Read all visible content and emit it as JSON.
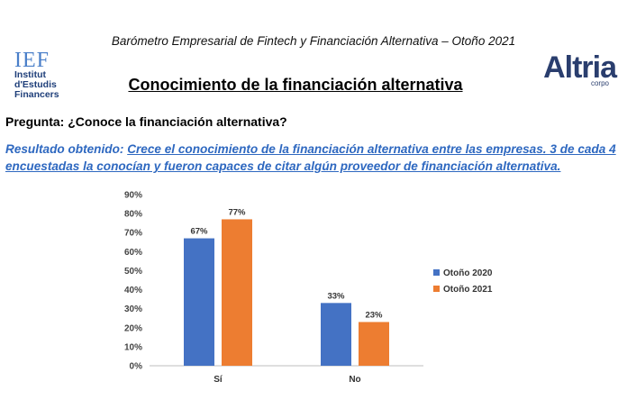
{
  "header": {
    "subtitle": "Barómetro Empresarial de Fintech y Financiación Alternativa – Otoño 2021",
    "title": "Conocimiento de la financiación alternativa"
  },
  "logos": {
    "ief_mark": "IEF",
    "ief_lines": [
      "Institut",
      "d'Estudis",
      "Financers"
    ],
    "altria_word": "Altria",
    "altria_sub": "corpo"
  },
  "question": "Pregunta: ¿Conoce la financiación alternativa?",
  "result": {
    "label": "Resultado obtenido:",
    "text": "Crece el conocimiento de la financiación alternativa entre las empresas. 3 de cada 4 encuestadas la conocían y fueron capaces de citar algún proveedor de financiación alternativa."
  },
  "chart_data": {
    "type": "bar",
    "categories": [
      "Sí",
      "No"
    ],
    "series": [
      {
        "name": "Otoño 2020",
        "values": [
          67,
          33
        ],
        "color": "#4472c4"
      },
      {
        "name": "Otoño 2021",
        "values": [
          77,
          23
        ],
        "color": "#ed7d31"
      }
    ],
    "data_labels": [
      [
        "67%",
        "33%"
      ],
      [
        "77%",
        "23%"
      ]
    ],
    "ylim": [
      0,
      90
    ],
    "yticks": [
      "0%",
      "10%",
      "20%",
      "30%",
      "40%",
      "50%",
      "60%",
      "70%",
      "80%",
      "90%"
    ],
    "grid": false,
    "legend": "right"
  }
}
